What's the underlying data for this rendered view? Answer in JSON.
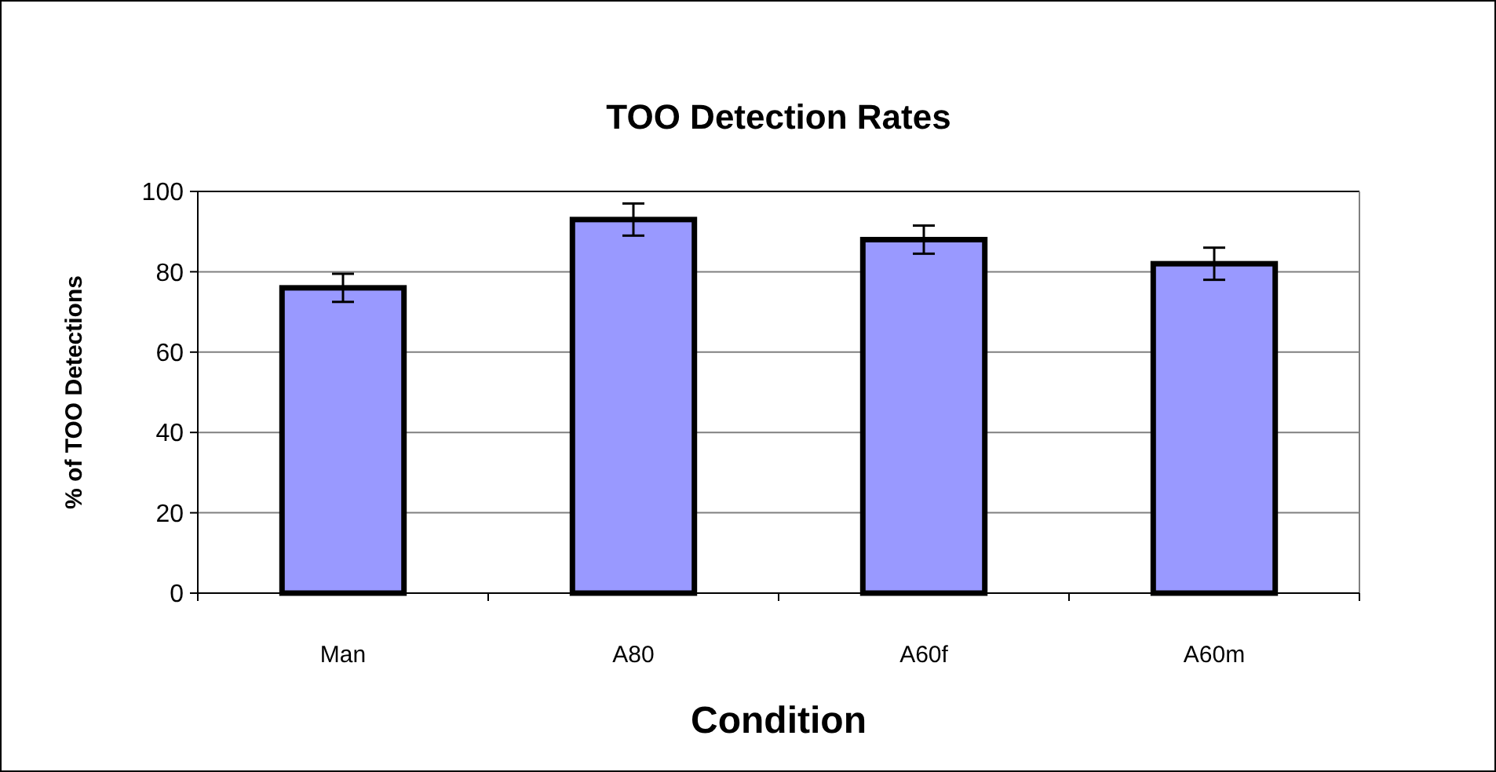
{
  "chart_data": {
    "type": "bar",
    "title": "TOO Detection Rates",
    "xlabel": "Condition",
    "ylabel": "% of TOO Detections",
    "categories": [
      "Man",
      "A80",
      "A60f",
      "A60m"
    ],
    "values": [
      76,
      93,
      88,
      82
    ],
    "errors": [
      3.5,
      4,
      3.5,
      4
    ],
    "color": "#9999ff",
    "ylim": [
      0,
      100
    ],
    "yticks": [
      0,
      20,
      40,
      60,
      80,
      100
    ],
    "grid": "y"
  }
}
